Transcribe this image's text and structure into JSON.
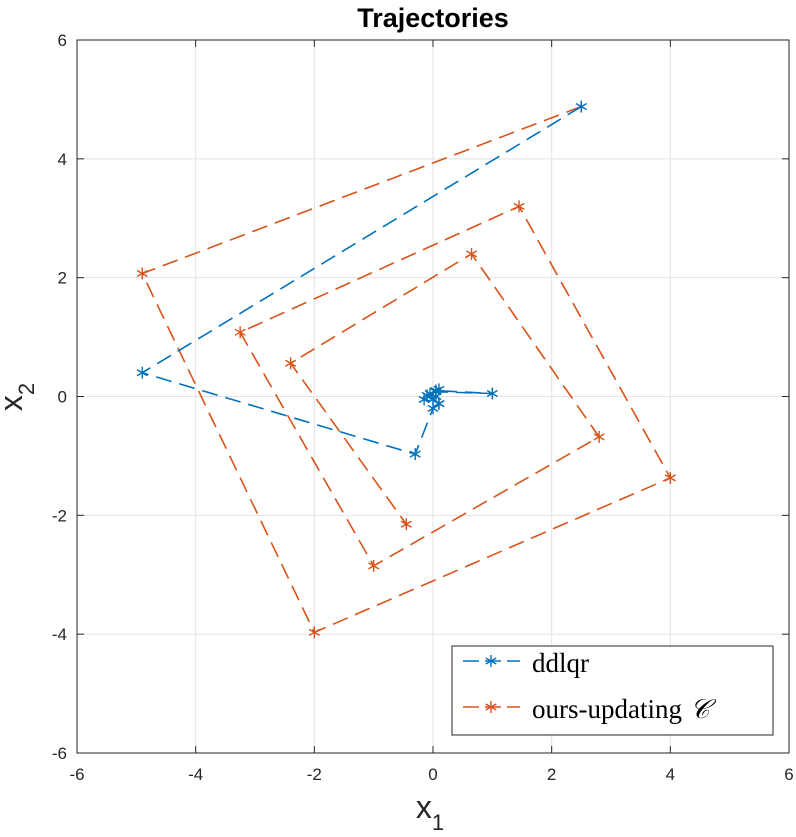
{
  "chart_data": {
    "type": "line",
    "title": "Trajectories",
    "xlabel": "x",
    "xlabel_sub": "1",
    "ylabel": "x",
    "ylabel_sub": "2",
    "xlim": [
      -6,
      6
    ],
    "ylim": [
      -6,
      6
    ],
    "xticks": [
      -6,
      -4,
      -2,
      0,
      2,
      4,
      6
    ],
    "yticks": [
      -6,
      -4,
      -2,
      0,
      2,
      4,
      6
    ],
    "xtick_labels": [
      "-6",
      "-4",
      "-2",
      "0",
      "2",
      "4",
      "6"
    ],
    "ytick_labels": [
      "-6",
      "-4",
      "-2",
      "0",
      "2",
      "4",
      "6"
    ],
    "grid": true,
    "legend_position": "bottom-right",
    "series": [
      {
        "name": "ddlqr",
        "color": "#0072BD",
        "line_style": "dashed",
        "marker": "asterisk",
        "x": [
          2.5,
          -4.9,
          -0.3,
          0.0,
          0.1,
          -0.15,
          0.1,
          0.05,
          1.0,
          0.05,
          -0.1,
          0.1,
          0.0,
          -0.05,
          0.05
        ],
        "y": [
          4.88,
          0.4,
          -0.97,
          -0.2,
          -0.12,
          -0.05,
          0.12,
          0.08,
          0.05,
          0.1,
          0.02,
          -0.12,
          -0.05,
          0.05,
          0.0
        ]
      },
      {
        "name": "ours-updating",
        "name_symbol": "𝒞",
        "color": "#D95319",
        "line_style": "dashed",
        "marker": "asterisk",
        "x": [
          2.5,
          -4.9,
          -2.0,
          4.0,
          1.45,
          -3.25,
          -1.0,
          2.8,
          0.65,
          -2.4,
          -0.45
        ],
        "y": [
          4.88,
          2.07,
          -3.97,
          -1.37,
          3.2,
          1.08,
          -2.85,
          -0.68,
          2.4,
          0.56,
          -2.15
        ]
      }
    ]
  }
}
